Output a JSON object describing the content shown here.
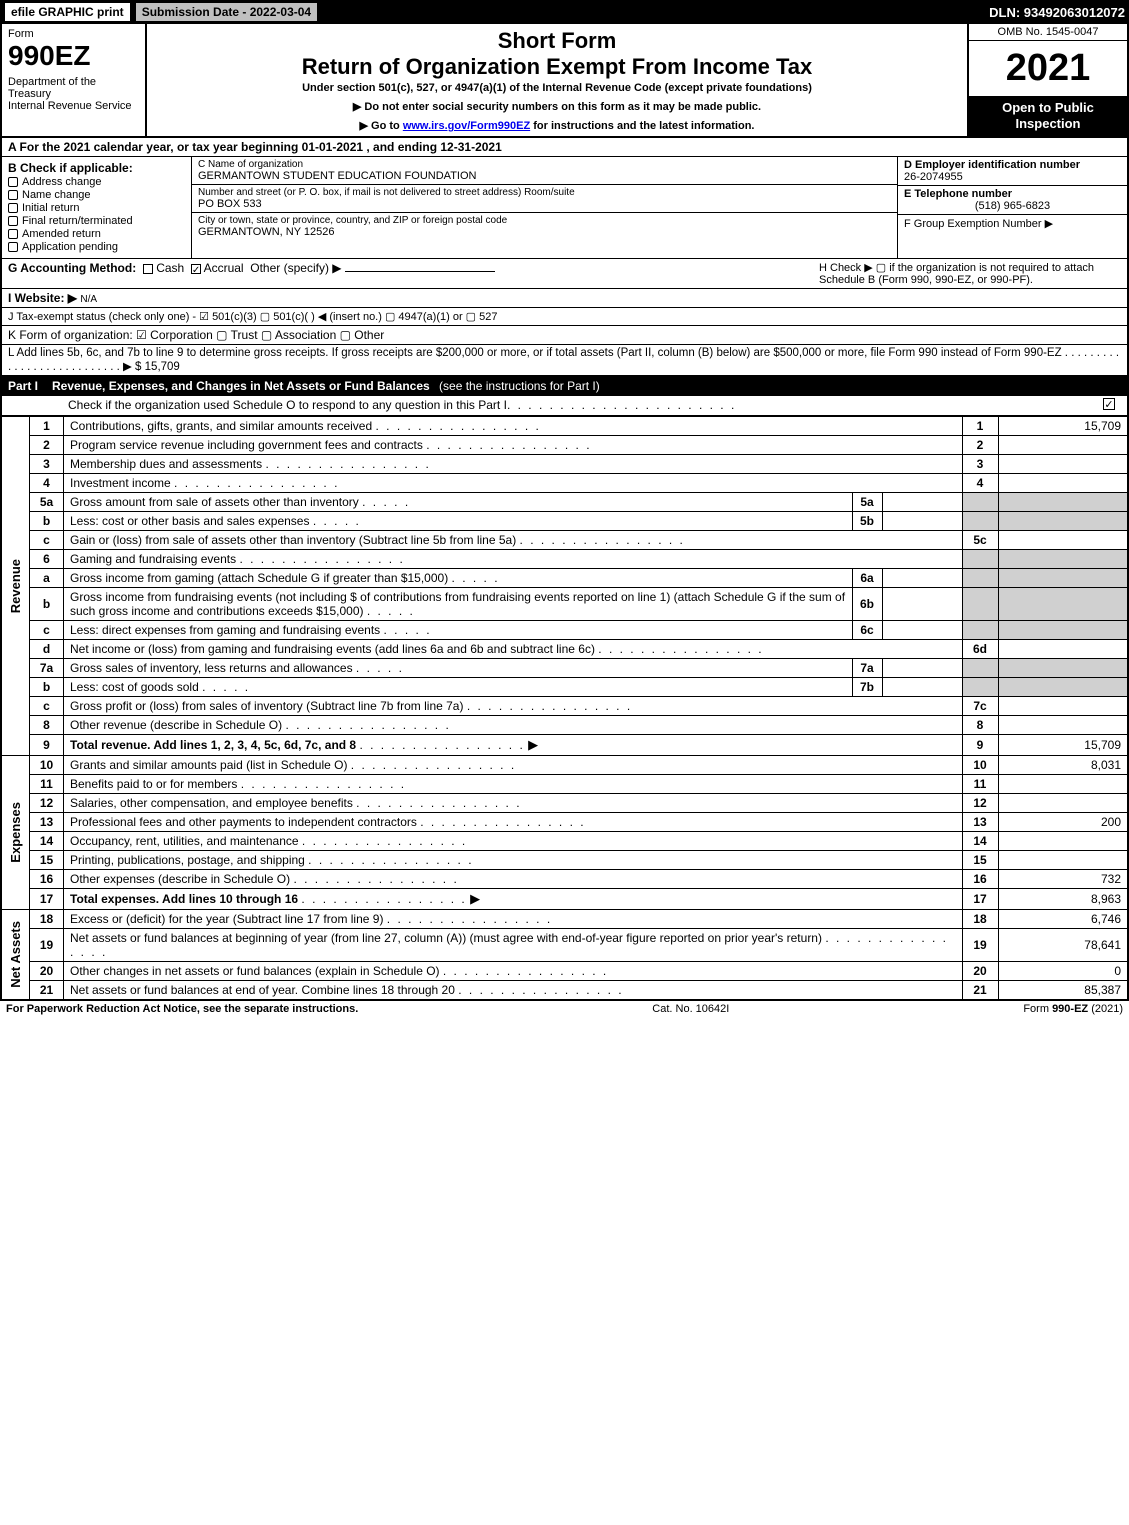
{
  "topbar": {
    "efile": "efile GRAPHIC print",
    "subdate": "Submission Date - 2022-03-04",
    "dln": "DLN: 93492063012072"
  },
  "header": {
    "form_word": "Form",
    "form_number": "990EZ",
    "dept": "Department of the Treasury\nInternal Revenue Service",
    "short_form": "Short Form",
    "title": "Return of Organization Exempt From Income Tax",
    "subtitle": "Under section 501(c), 527, or 4947(a)(1) of the Internal Revenue Code (except private foundations)",
    "instr1": "▶ Do not enter social security numbers on this form as it may be made public.",
    "instr2_pre": "▶ Go to ",
    "instr2_link": "www.irs.gov/Form990EZ",
    "instr2_post": " for instructions and the latest information.",
    "omb": "OMB No. 1545-0047",
    "year": "2021",
    "inspection": "Open to Public Inspection"
  },
  "lineA": "A  For the 2021 calendar year, or tax year beginning 01-01-2021 , and ending 12-31-2021",
  "colB": {
    "head": "B  Check if applicable:",
    "items": [
      "Address change",
      "Name change",
      "Initial return",
      "Final return/terminated",
      "Amended return",
      "Application pending"
    ]
  },
  "colC": {
    "name_label": "C Name of organization",
    "name": "GERMANTOWN STUDENT EDUCATION FOUNDATION",
    "street_label": "Number and street (or P. O. box, if mail is not delivered to street address)        Room/suite",
    "street": "PO BOX 533",
    "city_label": "City or town, state or province, country, and ZIP or foreign postal code",
    "city": "GERMANTOWN, NY  12526"
  },
  "colDE": {
    "d_head": "D Employer identification number",
    "d_val": "26-2074955",
    "e_head": "E Telephone number",
    "e_val": "(518) 965-6823",
    "f_head": "F Group Exemption Number  ▶"
  },
  "lineG": {
    "label": "G Accounting Method:",
    "cash": "Cash",
    "accrual": "Accrual",
    "other": "Other (specify) ▶"
  },
  "lineH": "H  Check ▶   ▢  if the organization is not required to attach Schedule B (Form 990, 990-EZ, or 990-PF).",
  "lineI": {
    "label": "I Website: ▶",
    "val": "N/A"
  },
  "lineJ": "J Tax-exempt status (check only one) - ☑ 501(c)(3)  ▢ 501(c)(  ) ◀ (insert no.)  ▢ 4947(a)(1) or  ▢ 527",
  "lineK": "K Form of organization:   ☑ Corporation   ▢ Trust   ▢ Association   ▢ Other",
  "lineL": "L Add lines 5b, 6c, and 7b to line 9 to determine gross receipts. If gross receipts are $200,000 or more, or if total assets (Part II, column (B) below) are $500,000 or more, file Form 990 instead of Form 990-EZ  .  .  .  .  .  .  .  .  .  .  .  .  .  .  .  .  .  .  .  .  .  .  .  .  .  .  .  ▶ $ 15,709",
  "part1": {
    "label": "Part I",
    "title": "Revenue, Expenses, and Changes in Net Assets or Fund Balances",
    "see": "(see the instructions for Part I)",
    "check": "Check if the organization used Schedule O to respond to any question in this Part I"
  },
  "sections": {
    "revenue": "Revenue",
    "expenses": "Expenses",
    "netassets": "Net Assets"
  },
  "rows": [
    {
      "s": "rev",
      "ln": "1",
      "desc": "Contributions, gifts, grants, and similar amounts received",
      "num": "1",
      "val": "15,709"
    },
    {
      "s": "rev",
      "ln": "2",
      "desc": "Program service revenue including government fees and contracts",
      "num": "2",
      "val": ""
    },
    {
      "s": "rev",
      "ln": "3",
      "desc": "Membership dues and assessments",
      "num": "3",
      "val": ""
    },
    {
      "s": "rev",
      "ln": "4",
      "desc": "Investment income",
      "num": "4",
      "val": ""
    },
    {
      "s": "rev",
      "ln": "5a",
      "desc": "Gross amount from sale of assets other than inventory",
      "iln": "5a",
      "ival": "",
      "num": "",
      "val": "",
      "shade": true
    },
    {
      "s": "rev",
      "ln": "b",
      "desc": "Less: cost or other basis and sales expenses",
      "iln": "5b",
      "ival": "",
      "num": "",
      "val": "",
      "shade": true
    },
    {
      "s": "rev",
      "ln": "c",
      "desc": "Gain or (loss) from sale of assets other than inventory (Subtract line 5b from line 5a)",
      "num": "5c",
      "val": ""
    },
    {
      "s": "rev",
      "ln": "6",
      "desc": "Gaming and fundraising events",
      "num": "",
      "val": "",
      "shade": true
    },
    {
      "s": "rev",
      "ln": "a",
      "desc": "Gross income from gaming (attach Schedule G if greater than $15,000)",
      "iln": "6a",
      "ival": "",
      "num": "",
      "val": "",
      "shade": true
    },
    {
      "s": "rev",
      "ln": "b",
      "desc": "Gross income from fundraising events (not including $                   of contributions from fundraising events reported on line 1) (attach Schedule G if the sum of such gross income and contributions exceeds $15,000)",
      "iln": "6b",
      "ival": "",
      "num": "",
      "val": "",
      "shade": true
    },
    {
      "s": "rev",
      "ln": "c",
      "desc": "Less: direct expenses from gaming and fundraising events",
      "iln": "6c",
      "ival": "",
      "num": "",
      "val": "",
      "shade": true
    },
    {
      "s": "rev",
      "ln": "d",
      "desc": "Net income or (loss) from gaming and fundraising events (add lines 6a and 6b and subtract line 6c)",
      "num": "6d",
      "val": ""
    },
    {
      "s": "rev",
      "ln": "7a",
      "desc": "Gross sales of inventory, less returns and allowances",
      "iln": "7a",
      "ival": "",
      "num": "",
      "val": "",
      "shade": true
    },
    {
      "s": "rev",
      "ln": "b",
      "desc": "Less: cost of goods sold",
      "iln": "7b",
      "ival": "",
      "num": "",
      "val": "",
      "shade": true
    },
    {
      "s": "rev",
      "ln": "c",
      "desc": "Gross profit or (loss) from sales of inventory (Subtract line 7b from line 7a)",
      "num": "7c",
      "val": ""
    },
    {
      "s": "rev",
      "ln": "8",
      "desc": "Other revenue (describe in Schedule O)",
      "num": "8",
      "val": ""
    },
    {
      "s": "rev",
      "ln": "9",
      "desc": "Total revenue. Add lines 1, 2, 3, 4, 5c, 6d, 7c, and 8",
      "num": "9",
      "val": "15,709",
      "bold": true,
      "arrow": true
    },
    {
      "s": "exp",
      "ln": "10",
      "desc": "Grants and similar amounts paid (list in Schedule O)",
      "num": "10",
      "val": "8,031"
    },
    {
      "s": "exp",
      "ln": "11",
      "desc": "Benefits paid to or for members",
      "num": "11",
      "val": ""
    },
    {
      "s": "exp",
      "ln": "12",
      "desc": "Salaries, other compensation, and employee benefits",
      "num": "12",
      "val": ""
    },
    {
      "s": "exp",
      "ln": "13",
      "desc": "Professional fees and other payments to independent contractors",
      "num": "13",
      "val": "200"
    },
    {
      "s": "exp",
      "ln": "14",
      "desc": "Occupancy, rent, utilities, and maintenance",
      "num": "14",
      "val": ""
    },
    {
      "s": "exp",
      "ln": "15",
      "desc": "Printing, publications, postage, and shipping",
      "num": "15",
      "val": ""
    },
    {
      "s": "exp",
      "ln": "16",
      "desc": "Other expenses (describe in Schedule O)",
      "num": "16",
      "val": "732"
    },
    {
      "s": "exp",
      "ln": "17",
      "desc": "Total expenses. Add lines 10 through 16",
      "num": "17",
      "val": "8,963",
      "bold": true,
      "arrow": true
    },
    {
      "s": "net",
      "ln": "18",
      "desc": "Excess or (deficit) for the year (Subtract line 17 from line 9)",
      "num": "18",
      "val": "6,746"
    },
    {
      "s": "net",
      "ln": "19",
      "desc": "Net assets or fund balances at beginning of year (from line 27, column (A)) (must agree with end-of-year figure reported on prior year's return)",
      "num": "19",
      "val": "78,641"
    },
    {
      "s": "net",
      "ln": "20",
      "desc": "Other changes in net assets or fund balances (explain in Schedule O)",
      "num": "20",
      "val": "0"
    },
    {
      "s": "net",
      "ln": "21",
      "desc": "Net assets or fund balances at end of year. Combine lines 18 through 20",
      "num": "21",
      "val": "85,387"
    }
  ],
  "footer": {
    "left": "For Paperwork Reduction Act Notice, see the separate instructions.",
    "mid": "Cat. No. 10642I",
    "right_pre": "Form ",
    "right_bold": "990-EZ",
    "right_post": " (2021)"
  },
  "colors": {
    "black": "#000000",
    "white": "#ffffff",
    "gray_btn": "#c0c0c0",
    "shade": "#d0d0d0",
    "link": "#0000ee"
  }
}
